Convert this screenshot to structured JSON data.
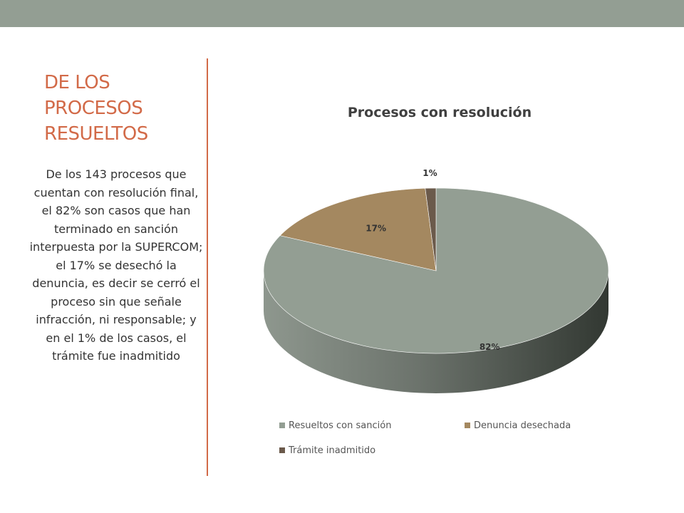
{
  "slide": {
    "title": "DE LOS PROCESOS RESUELTOS",
    "body": "De los 143 procesos que cuentan con resolución final, el 82% son casos que han terminado en sanción interpuesta por la SUPERCOM; el 17% se desechó la denuncia, es decir se cerró el proceso sin que señale infracción, ni responsable; y en el 1% de los casos, el trámite fue inadmitido"
  },
  "colors": {
    "accent": "#d26a48",
    "top_bar": "#939e93"
  },
  "chart_data": {
    "type": "pie",
    "style": "3d",
    "title": "Procesos con resolución",
    "categories": [
      "Resueltos con sanción",
      "Denuncia desechada",
      "Trámite inadmitido"
    ],
    "values": [
      82,
      17,
      1
    ],
    "labels": [
      "82%",
      "17%",
      "1%"
    ],
    "colors": [
      "#939e93",
      "#a48860",
      "#6b5a4b"
    ],
    "legend_position": "bottom"
  }
}
